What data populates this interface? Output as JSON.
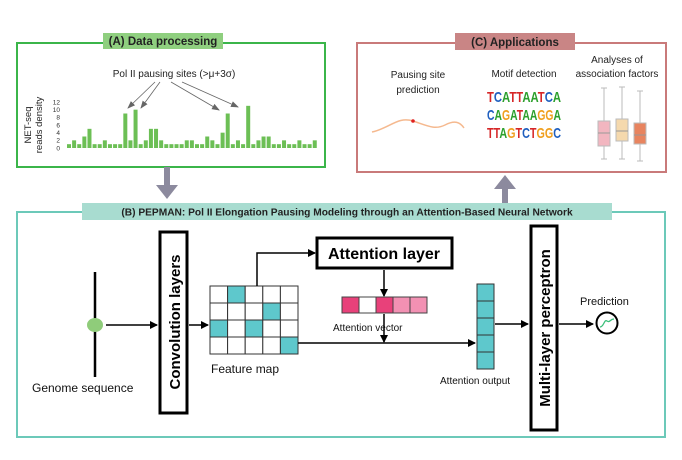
{
  "panel_a": {
    "title": "(A) Data processing",
    "annotation": "Pol II pausing sites (>μ+3σ)",
    "ylabel_line1": "NET-seq",
    "ylabel_line2": "reads density",
    "y_ticks": [
      "0",
      "2",
      "4",
      "6",
      "8",
      "10",
      "12"
    ],
    "bars": [
      1,
      2,
      1,
      3,
      5,
      1,
      1,
      2,
      1,
      1,
      1,
      9,
      2,
      10,
      1,
      2,
      5,
      5,
      2,
      1,
      1,
      1,
      1,
      2,
      2,
      1,
      1,
      3,
      2,
      1,
      4,
      9,
      1,
      2,
      1,
      11,
      1,
      2,
      3,
      3,
      1,
      1,
      2,
      1,
      1,
      2,
      1,
      1,
      2
    ],
    "ymax": 12,
    "colors": {
      "border": "#3bb54a",
      "title_bg": "#8fcf7f",
      "bar": "#6cbf55"
    }
  },
  "panel_b": {
    "title": "(B) PEPMAN: Pol II Elongation Pausing Modeling through an Attention-Based Neural Network",
    "genome_label": "Genome sequence",
    "conv_label": "Convolution layers",
    "feature_map_label": "Feature map",
    "attention_layer_label": "Attention layer",
    "attention_vector_label": "Attention vector",
    "attention_output_label": "Attention output",
    "mlp_label": "Multi-layer perceptron",
    "prediction_label": "Prediction",
    "feature_map_highlight": [
      [
        0,
        1
      ],
      [
        1,
        3
      ],
      [
        2,
        0
      ],
      [
        2,
        2
      ],
      [
        3,
        4
      ]
    ],
    "attention_vector_colors": [
      "#e8417a",
      "#ffffff",
      "#e8417a",
      "#f291b3",
      "#f291b3"
    ],
    "colors": {
      "border": "#6cc9b9",
      "title_bg": "#a8dcd0",
      "teal": "#5ec8cc",
      "green_dot": "#8fcc7a"
    }
  },
  "panel_c": {
    "title": "(C) Applications",
    "pausing_line1": "Pausing site",
    "pausing_line2": "prediction",
    "motif_label": "Motif detection",
    "motif_rows": [
      "TCATTAATCA",
      "CAGATAAGGA",
      "TTAGTCTGGC"
    ],
    "analyses_line1": "Analyses of",
    "analyses_line2": "association factors",
    "box_colors": [
      "#f2b6c0",
      "#f5d9ad",
      "#e8845f"
    ],
    "colors": {
      "border": "#c97a7a",
      "title_bg": "#c98585"
    }
  },
  "arrow_color": "#8c8a9e"
}
